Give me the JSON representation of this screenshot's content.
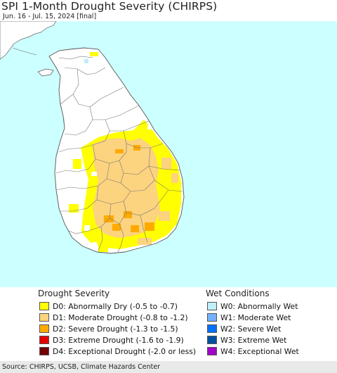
{
  "header": {
    "title": "SPI 1-Month Drought Severity (CHIRPS)",
    "subtitle": "Jun. 16 - Jul. 15, 2024 [final]"
  },
  "colors": {
    "ocean": "#ccffff",
    "land": "#ffffff",
    "border": "#666666",
    "d0": "#ffff00",
    "d1": "#fcd37f",
    "d2": "#ffaa00",
    "d3": "#e60000",
    "d4": "#730000",
    "w0": "#bfeffa",
    "w1": "#73b2ff",
    "w2": "#0070ff",
    "w3": "#0050a0",
    "w4": "#a000c8"
  },
  "legend": {
    "drought_title": "Drought Severity",
    "drought_items": [
      {
        "label": "D0: Abnormally Dry (-0.5 to -0.7)",
        "color": "#ffff00"
      },
      {
        "label": "D1: Moderate Drought (-0.8 to -1.2)",
        "color": "#fcd37f"
      },
      {
        "label": "D2: Severe Drought (-1.3 to -1.5)",
        "color": "#ffaa00"
      },
      {
        "label": "D3: Extreme Drought (-1.6 to -1.9)",
        "color": "#e60000"
      },
      {
        "label": "D4: Exceptional Drought (-2.0 or less)",
        "color": "#730000"
      }
    ],
    "wet_title": "Wet Conditions",
    "wet_items": [
      {
        "label": "W0: Abnormally Wet",
        "color": "#bfeffa"
      },
      {
        "label": "W1: Moderate Wet",
        "color": "#73b2ff"
      },
      {
        "label": "W2: Severe Wet",
        "color": "#0070ff"
      },
      {
        "label": "W3: Extreme Wet",
        "color": "#0050a0"
      },
      {
        "label": "W4: Exceptional Wet",
        "color": "#a000c8"
      }
    ]
  },
  "footer": {
    "source": "Source: CHIRPS, UCSB, Climate Hazards Center"
  }
}
